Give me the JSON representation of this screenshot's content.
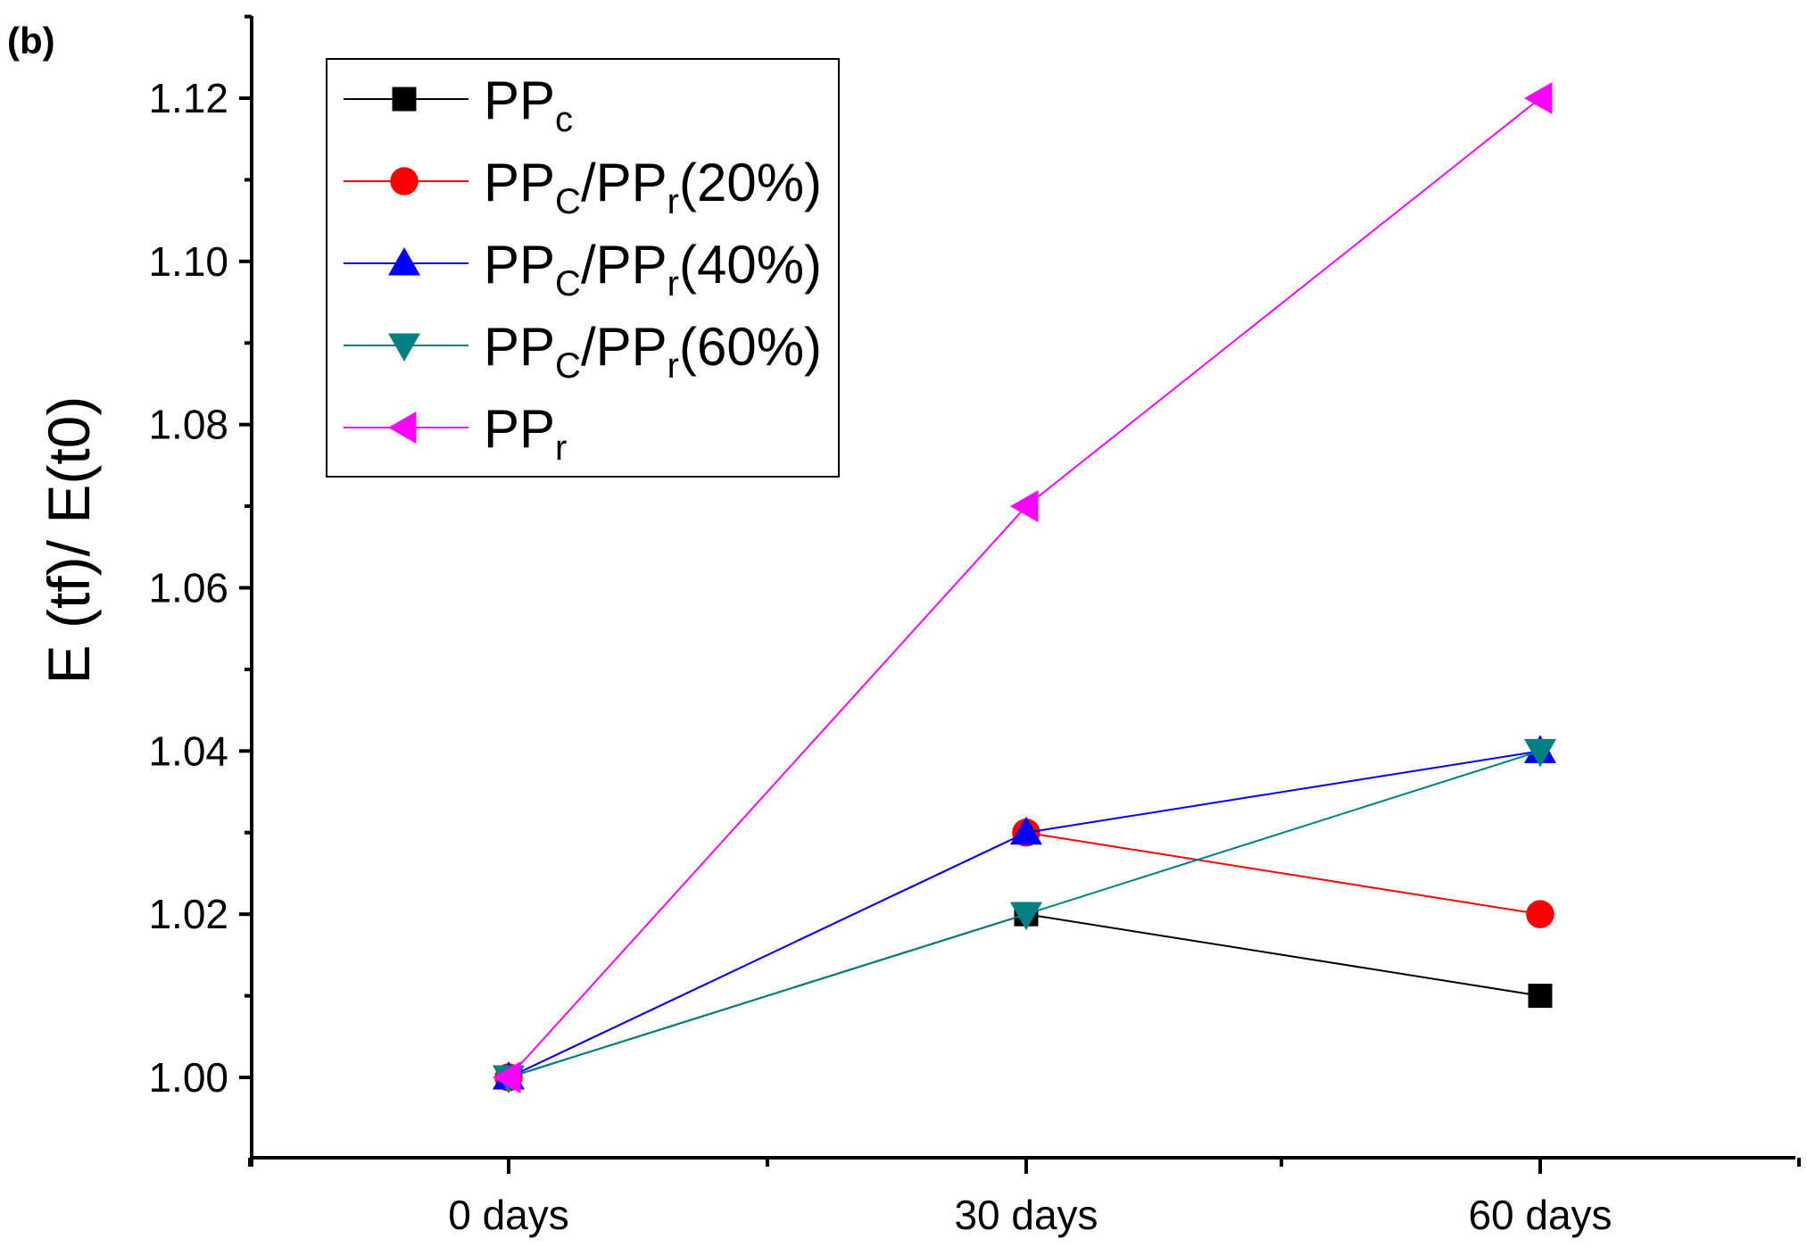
{
  "panel_label": "(b)",
  "chart_data": {
    "type": "line",
    "title": "",
    "xlabel": "",
    "ylabel": "E (tf)/ E(t0)",
    "categories": [
      "0 days",
      "30 days",
      "60 days"
    ],
    "ylim": [
      0.99,
      1.13
    ],
    "yticks": [
      1.0,
      1.02,
      1.04,
      1.06,
      1.08,
      1.1,
      1.12
    ],
    "ytick_labels": [
      "1.00",
      "1.02",
      "1.04",
      "1.06",
      "1.08",
      "1.10",
      "1.12"
    ],
    "grid": false,
    "legend_position": "top-left",
    "series": [
      {
        "name": "PPc",
        "legend_main": "PP",
        "legend_sub": "c",
        "legend_rest": "",
        "color": "#000000",
        "marker": "square",
        "values": [
          1.0,
          1.02,
          1.01
        ]
      },
      {
        "name": "PPC/PPr(20%)",
        "legend_main": "PP",
        "legend_sub": "C",
        "legend_rest": "/PP",
        "legend_sub2": "r",
        "legend_tail": "(20%)",
        "color": "#ff0000",
        "marker": "circle",
        "values": [
          1.0,
          1.03,
          1.02
        ]
      },
      {
        "name": "PPC/PPr(40%)",
        "legend_main": "PP",
        "legend_sub": "C",
        "legend_rest": "/PP",
        "legend_sub2": "r",
        "legend_tail": "(40%)",
        "color": "#0000ff",
        "marker": "triangle-up",
        "values": [
          1.0,
          1.03,
          1.04
        ]
      },
      {
        "name": "PPC/PPr(60%)",
        "legend_main": "PP",
        "legend_sub": "C",
        "legend_rest": "/PP",
        "legend_sub2": "r",
        "legend_tail": "(60%)",
        "color": "#008080",
        "marker": "triangle-down",
        "values": [
          1.0,
          1.02,
          1.04
        ]
      },
      {
        "name": "PPr",
        "legend_main": "PP",
        "legend_sub": "r",
        "legend_rest": "",
        "color": "#ff00ff",
        "marker": "triangle-left",
        "values": [
          1.0,
          1.07,
          1.12
        ]
      }
    ]
  }
}
